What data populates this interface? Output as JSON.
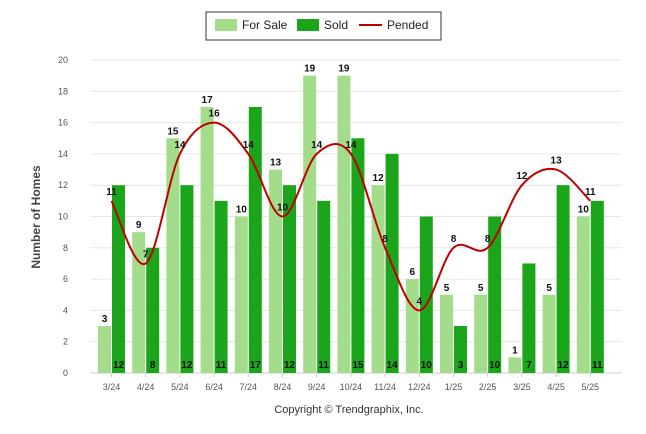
{
  "chart_data": {
    "type": "bar",
    "categories": [
      "3/24",
      "4/24",
      "5/24",
      "6/24",
      "7/24",
      "8/24",
      "9/24",
      "10/24",
      "11/24",
      "12/24",
      "1/25",
      "2/25",
      "3/25",
      "4/25",
      "5/25"
    ],
    "series": [
      {
        "name": "For Sale",
        "type": "bar",
        "color": "#a3dc8a",
        "values": [
          3,
          9,
          15,
          17,
          10,
          13,
          19,
          19,
          12,
          6,
          5,
          5,
          1,
          5,
          10
        ]
      },
      {
        "name": "Sold",
        "type": "bar",
        "color": "#1aa51a",
        "values": [
          12,
          8,
          12,
          11,
          17,
          12,
          11,
          15,
          14,
          10,
          3,
          10,
          7,
          12,
          11
        ]
      },
      {
        "name": "Pended",
        "type": "line",
        "color": "#c00000",
        "values": [
          11,
          7,
          14,
          16,
          14,
          10,
          14,
          14,
          8,
          4,
          8,
          8,
          12,
          13,
          11
        ]
      }
    ],
    "xlabel": "",
    "ylabel": "Number of Homes",
    "ylim": [
      0,
      20
    ],
    "yticks": [
      0,
      2,
      4,
      6,
      8,
      10,
      12,
      14,
      16,
      18,
      20
    ],
    "grid": true,
    "legend_placement": "top-center",
    "credit": "Copyright © Trendgraphix, Inc."
  }
}
